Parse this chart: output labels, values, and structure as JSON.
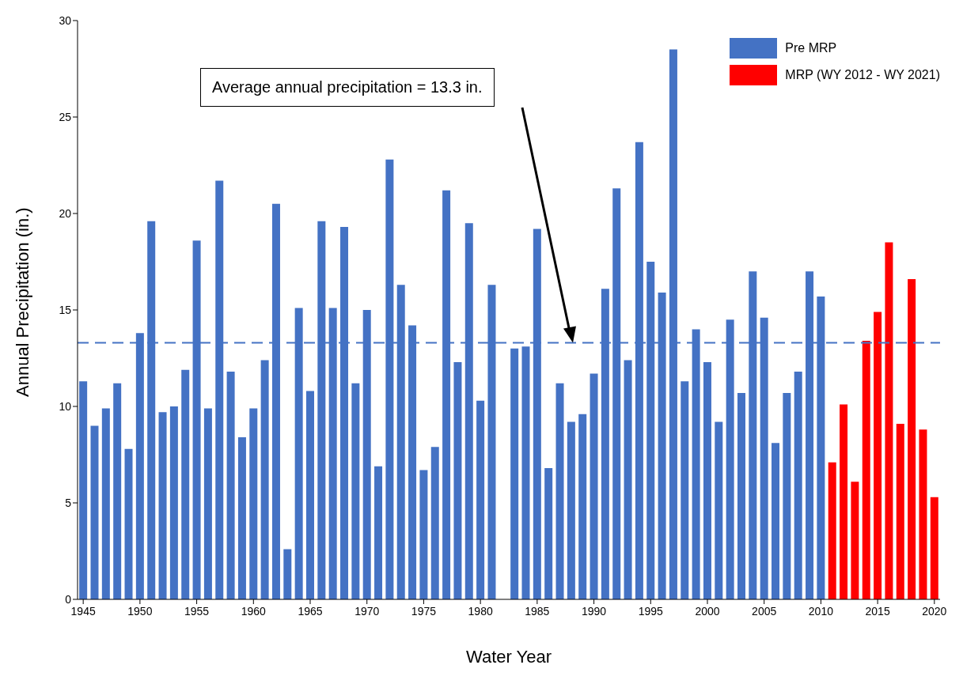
{
  "chart_data": {
    "type": "bar",
    "xlabel": "Water Year",
    "ylabel": "Annual Precipitation (in.)",
    "categories": [
      "1945",
      null,
      null,
      null,
      null,
      "1950",
      null,
      null,
      null,
      null,
      "1955",
      null,
      null,
      null,
      null,
      "1960",
      null,
      null,
      null,
      null,
      "1965",
      null,
      null,
      null,
      null,
      "1970",
      null,
      null,
      null,
      null,
      "1975",
      null,
      null,
      null,
      null,
      "1980",
      null,
      null,
      null,
      null,
      "1985",
      null,
      null,
      null,
      null,
      "1990",
      null,
      null,
      null,
      null,
      "1995",
      null,
      null,
      null,
      null,
      "2000",
      null,
      null,
      null,
      null,
      "2005",
      null,
      null,
      null,
      null,
      "2010",
      null,
      null,
      null,
      null,
      "2015",
      null,
      null,
      null,
      null,
      "2020"
    ],
    "series": [
      {
        "name": "Pre MRP",
        "color": "#4472c4",
        "values": [
          11.3,
          9.0,
          9.9,
          11.2,
          7.8,
          13.8,
          19.6,
          9.7,
          10.0,
          11.9,
          18.6,
          9.9,
          21.7,
          11.8,
          8.4,
          9.9,
          12.4,
          20.5,
          2.6,
          15.1,
          10.8,
          19.6,
          15.1,
          19.3,
          11.2,
          15.0,
          6.9,
          22.8,
          16.3,
          14.2,
          6.7,
          7.9,
          21.2,
          12.3,
          19.5,
          10.3,
          16.3,
          null,
          13.0,
          13.1,
          19.2,
          6.8,
          11.2,
          9.2,
          9.6,
          11.7,
          16.1,
          21.3,
          12.4,
          23.7,
          17.5,
          15.9,
          28.5,
          11.3,
          14.0,
          12.3,
          9.2,
          14.5,
          10.7,
          17.0,
          14.6,
          8.1,
          10.7,
          11.8,
          17.0,
          15.7,
          null,
          null,
          null,
          null,
          null,
          null,
          null,
          null,
          null,
          null
        ]
      },
      {
        "name": "MRP (WY 2012 - WY 2021)",
        "color": "#ff0000",
        "values": [
          null,
          null,
          null,
          null,
          null,
          null,
          null,
          null,
          null,
          null,
          null,
          null,
          null,
          null,
          null,
          null,
          null,
          null,
          null,
          null,
          null,
          null,
          null,
          null,
          null,
          null,
          null,
          null,
          null,
          null,
          null,
          null,
          null,
          null,
          null,
          null,
          null,
          null,
          null,
          null,
          null,
          null,
          null,
          null,
          null,
          null,
          null,
          null,
          null,
          null,
          null,
          null,
          null,
          null,
          null,
          null,
          null,
          null,
          null,
          null,
          null,
          null,
          null,
          null,
          null,
          null,
          7.1,
          10.1,
          6.1,
          13.4,
          14.9,
          18.5,
          9.1,
          16.6,
          8.8,
          5.3
        ]
      }
    ],
    "ylim": [
      0,
      30
    ],
    "yticks": [
      0,
      5,
      10,
      15,
      20,
      25,
      30
    ],
    "ref_lines": [
      {
        "axis": "y",
        "value": 13.3,
        "color": "#4472c4",
        "line_style": "dashed"
      }
    ],
    "annotations": [
      "Average annual precipitation = 13.3 in."
    ],
    "legend": "top right"
  }
}
